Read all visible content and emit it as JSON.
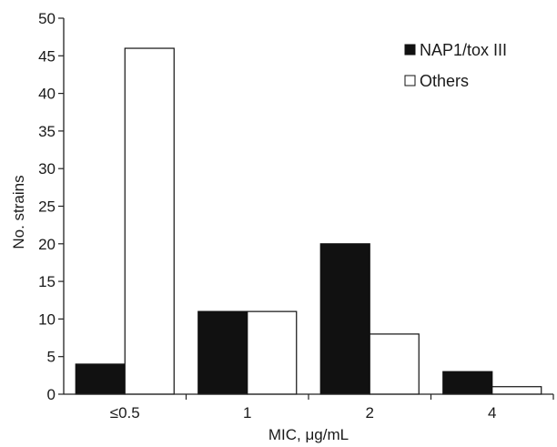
{
  "chart_data": {
    "type": "bar",
    "categories": [
      "≤0.5",
      "1",
      "2",
      "4"
    ],
    "series": [
      {
        "name": "NAP1/tox III",
        "values": [
          4,
          11,
          20,
          3
        ],
        "color": "#111111"
      },
      {
        "name": "Others",
        "values": [
          46,
          11,
          8,
          1
        ],
        "color": "#ffffff"
      }
    ],
    "xlabel": "MIC, μg/mL",
    "ylabel": "No. strains",
    "ylim": [
      0,
      50
    ],
    "yticks": [
      0,
      5,
      10,
      15,
      20,
      25,
      30,
      35,
      40,
      45,
      50
    ],
    "grid": false,
    "legend": "top-right"
  }
}
